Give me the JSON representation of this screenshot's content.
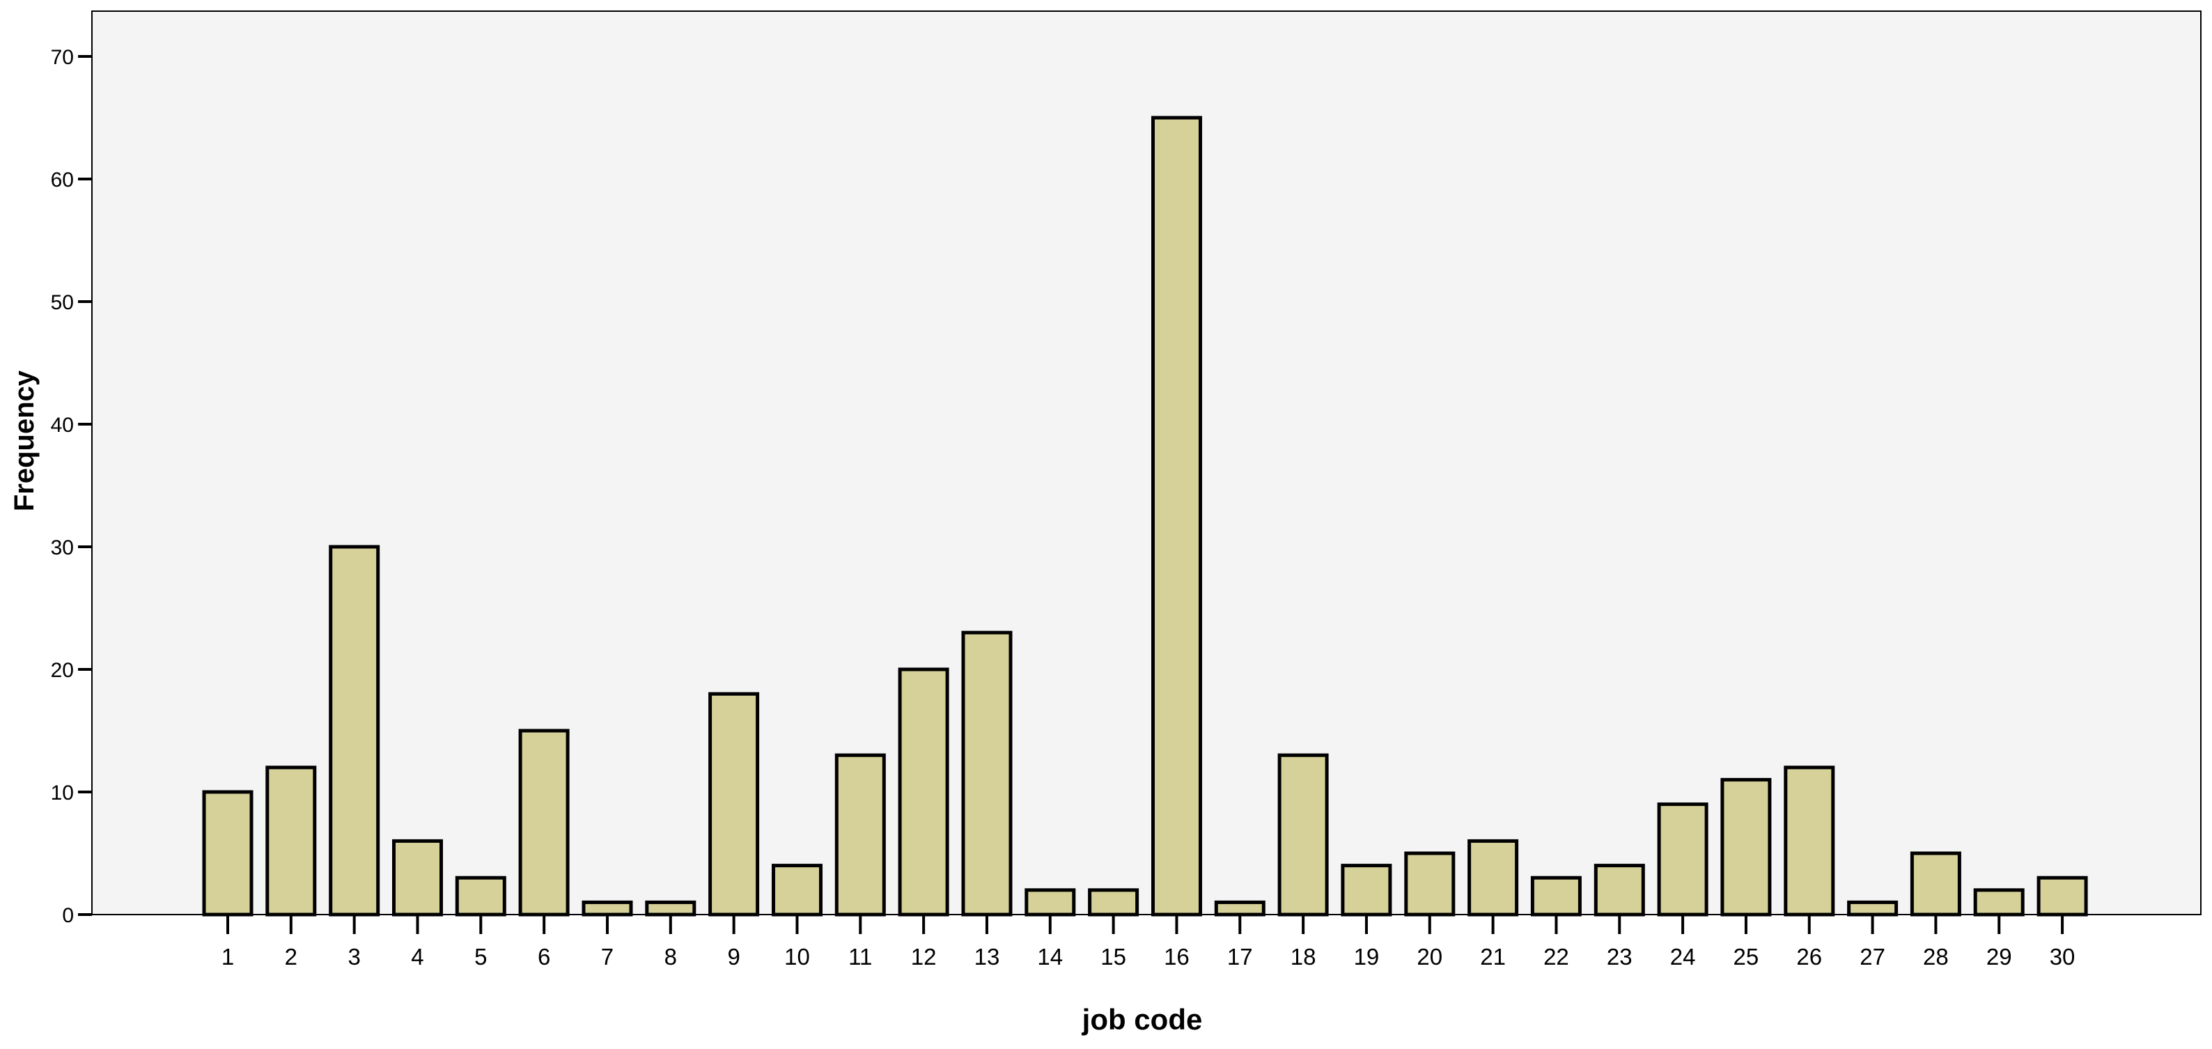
{
  "chart_data": {
    "type": "bar",
    "title": "",
    "xlabel": "job code",
    "ylabel": "Frequency",
    "categories": [
      "1",
      "2",
      "3",
      "4",
      "5",
      "6",
      "7",
      "8",
      "9",
      "10",
      "11",
      "12",
      "13",
      "14",
      "15",
      "16",
      "17",
      "18",
      "19",
      "20",
      "21",
      "22",
      "23",
      "24",
      "25",
      "26",
      "27",
      "28",
      "29",
      "30"
    ],
    "values": [
      10,
      12,
      30,
      6,
      3,
      15,
      1,
      1,
      18,
      4,
      13,
      20,
      23,
      2,
      2,
      65,
      1,
      13,
      4,
      5,
      6,
      3,
      4,
      9,
      11,
      12,
      1,
      5,
      2,
      3
    ],
    "y_ticks": [
      "0",
      "10",
      "20",
      "30",
      "40",
      "50",
      "60",
      "70"
    ],
    "ylim": [
      0,
      70
    ],
    "grid": false,
    "legend": "none",
    "colors": {
      "bar_fill": "#d6d198",
      "bar_stroke": "#000000",
      "plot_background": "#f4f4f4",
      "page_background": "#ffffff"
    }
  }
}
